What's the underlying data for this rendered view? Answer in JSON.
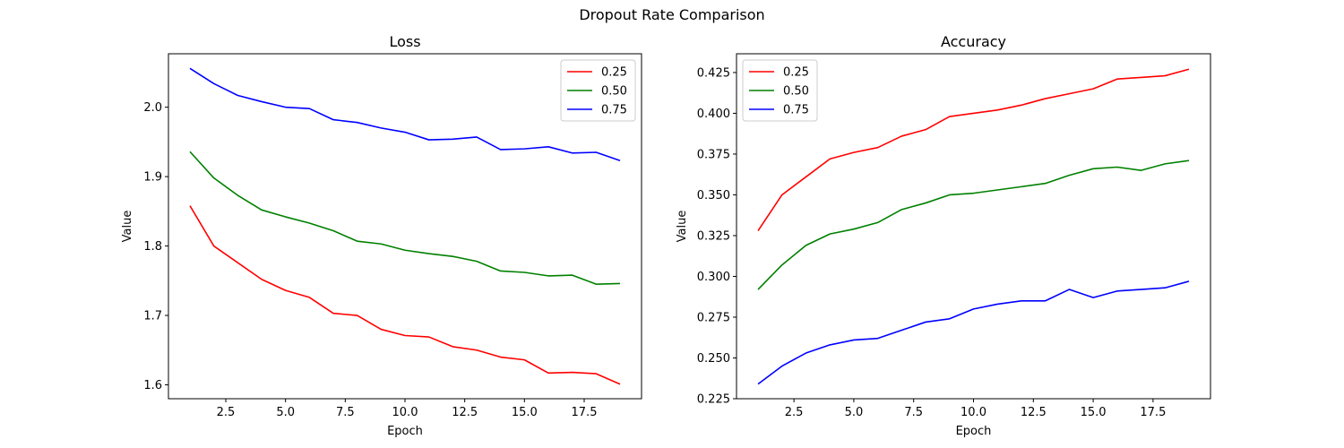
{
  "figure": {
    "suptitle": "Dropout Rate Comparison"
  },
  "chart_data": [
    {
      "type": "line",
      "title": "Loss",
      "xlabel": "Epoch",
      "ylabel": "Value",
      "xlim": [
        0.1,
        19.9
      ],
      "ylim": [
        1.58,
        2.077
      ],
      "xticks": [
        2.5,
        5.0,
        7.5,
        10.0,
        12.5,
        15.0,
        17.5
      ],
      "xtick_labels": [
        "2.5",
        "5.0",
        "7.5",
        "10.0",
        "12.5",
        "15.0",
        "17.5"
      ],
      "yticks": [
        1.6,
        1.7,
        1.8,
        1.9,
        2.0
      ],
      "ytick_labels": [
        "1.6",
        "1.7",
        "1.8",
        "1.9",
        "2.0"
      ],
      "legend_loc": "upper-right",
      "grid": false,
      "x": [
        1,
        2,
        3,
        4,
        5,
        6,
        7,
        8,
        9,
        10,
        11,
        12,
        13,
        14,
        15,
        16,
        17,
        18,
        19
      ],
      "series": [
        {
          "name": "0.25",
          "color": "#ff0000",
          "values": [
            1.858,
            1.8,
            1.776,
            1.752,
            1.736,
            1.726,
            1.703,
            1.7,
            1.68,
            1.671,
            1.669,
            1.655,
            1.65,
            1.64,
            1.636,
            1.617,
            1.618,
            1.616,
            1.601
          ]
        },
        {
          "name": "0.50",
          "color": "#008000",
          "values": [
            1.936,
            1.898,
            1.873,
            1.852,
            1.842,
            1.833,
            1.822,
            1.807,
            1.803,
            1.794,
            1.789,
            1.785,
            1.778,
            1.764,
            1.762,
            1.757,
            1.758,
            1.745,
            1.746
          ]
        },
        {
          "name": "0.75",
          "color": "#0000ff",
          "values": [
            2.056,
            2.034,
            2.017,
            2.008,
            2.0,
            1.998,
            1.982,
            1.978,
            1.97,
            1.964,
            1.953,
            1.954,
            1.957,
            1.939,
            1.94,
            1.943,
            1.934,
            1.935,
            1.923
          ]
        }
      ]
    },
    {
      "type": "line",
      "title": "Accuracy",
      "xlabel": "Epoch",
      "ylabel": "Value",
      "xlim": [
        0.1,
        19.9
      ],
      "ylim": [
        0.225,
        0.4365
      ],
      "xticks": [
        2.5,
        5.0,
        7.5,
        10.0,
        12.5,
        15.0,
        17.5
      ],
      "xtick_labels": [
        "2.5",
        "5.0",
        "7.5",
        "10.0",
        "12.5",
        "15.0",
        "17.5"
      ],
      "yticks": [
        0.225,
        0.25,
        0.275,
        0.3,
        0.325,
        0.35,
        0.375,
        0.4,
        0.425
      ],
      "ytick_labels": [
        "0.225",
        "0.250",
        "0.275",
        "0.300",
        "0.325",
        "0.350",
        "0.375",
        "0.400",
        "0.425"
      ],
      "legend_loc": "upper-left",
      "grid": false,
      "x": [
        1,
        2,
        3,
        4,
        5,
        6,
        7,
        8,
        9,
        10,
        11,
        12,
        13,
        14,
        15,
        16,
        17,
        18,
        19
      ],
      "series": [
        {
          "name": "0.25",
          "color": "#ff0000",
          "values": [
            0.328,
            0.35,
            0.361,
            0.372,
            0.376,
            0.379,
            0.386,
            0.39,
            0.398,
            0.4,
            0.402,
            0.405,
            0.409,
            0.412,
            0.415,
            0.421,
            0.422,
            0.423,
            0.427
          ]
        },
        {
          "name": "0.50",
          "color": "#008000",
          "values": [
            0.292,
            0.307,
            0.319,
            0.326,
            0.329,
            0.333,
            0.341,
            0.345,
            0.35,
            0.351,
            0.353,
            0.355,
            0.357,
            0.362,
            0.366,
            0.367,
            0.365,
            0.369,
            0.371
          ]
        },
        {
          "name": "0.75",
          "color": "#0000ff",
          "values": [
            0.234,
            0.245,
            0.253,
            0.258,
            0.261,
            0.262,
            0.267,
            0.272,
            0.274,
            0.28,
            0.283,
            0.285,
            0.285,
            0.292,
            0.287,
            0.291,
            0.292,
            0.293,
            0.297
          ]
        }
      ]
    }
  ]
}
